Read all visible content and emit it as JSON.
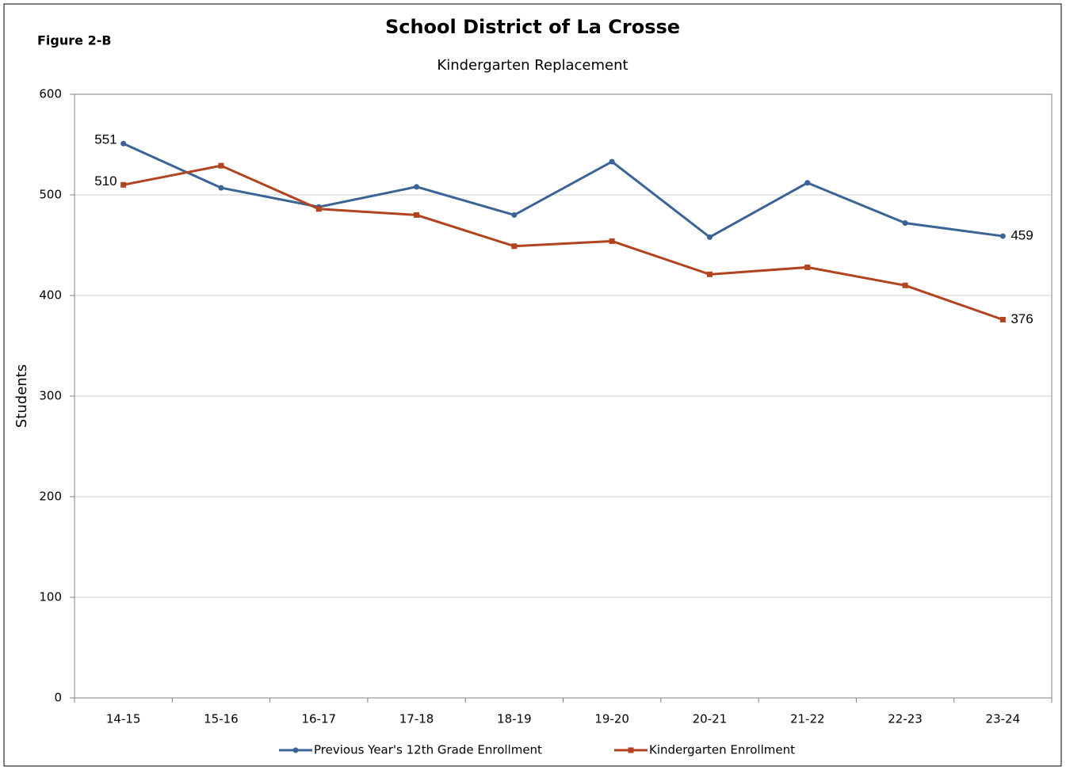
{
  "figure_label": "Figure 2-B",
  "chart_data": {
    "type": "line",
    "title": "School District of La Crosse",
    "subtitle": "Kindergarten Replacement",
    "y_label": "Students",
    "categories": [
      "14-15",
      "15-16",
      "16-17",
      "17-18",
      "18-19",
      "19-20",
      "20-21",
      "21-22",
      "22-23",
      "23-24"
    ],
    "series": [
      {
        "name": "Previous Year's 12th Grade Enrollment",
        "color": "#3b6496",
        "marker": "circle",
        "values": [
          551,
          507,
          488,
          508,
          480,
          533,
          458,
          512,
          472,
          459
        ],
        "value_labels": [
          "551",
          null,
          null,
          null,
          null,
          null,
          null,
          null,
          null,
          "459"
        ]
      },
      {
        "name": "Kindergarten Enrollment",
        "color": "#b1431f",
        "marker": "square",
        "values": [
          510,
          529,
          486,
          480,
          449,
          454,
          421,
          428,
          410,
          376
        ],
        "value_labels": [
          "510",
          null,
          null,
          null,
          null,
          null,
          null,
          null,
          null,
          "376"
        ]
      }
    ],
    "ylim": [
      0,
      600
    ],
    "yticks": [
      0,
      100,
      200,
      300,
      400,
      500,
      600
    ],
    "grid": true,
    "legend": "bottom"
  }
}
